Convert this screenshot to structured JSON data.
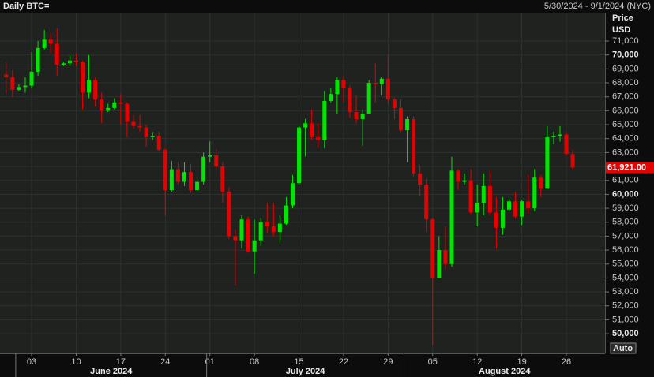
{
  "chart_data": {
    "type": "candlestick",
    "title": "Daily BTC=",
    "subtitle": "5/30/2024 - 9/1/2024 (NYC)",
    "y_axis_label": [
      "Price",
      "USD"
    ],
    "axis_button": "Auto",
    "up_color": "#00e600",
    "down_color": "#e60000",
    "grid": true,
    "xlim": [
      "2024-05-30",
      "2024-09-01"
    ],
    "ylim": [
      48590,
      73040
    ],
    "x": [
      "2024-05-30",
      "2024-05-31",
      "2024-06-01",
      "2024-06-02",
      "2024-06-03",
      "2024-06-04",
      "2024-06-05",
      "2024-06-06",
      "2024-06-07",
      "2024-06-08",
      "2024-06-09",
      "2024-06-10",
      "2024-06-11",
      "2024-06-12",
      "2024-06-13",
      "2024-06-14",
      "2024-06-15",
      "2024-06-16",
      "2024-06-17",
      "2024-06-18",
      "2024-06-19",
      "2024-06-20",
      "2024-06-21",
      "2024-06-22",
      "2024-06-23",
      "2024-06-24",
      "2024-06-25",
      "2024-06-26",
      "2024-06-27",
      "2024-06-28",
      "2024-06-29",
      "2024-06-30",
      "2024-07-01",
      "2024-07-02",
      "2024-07-03",
      "2024-07-04",
      "2024-07-05",
      "2024-07-06",
      "2024-07-07",
      "2024-07-08",
      "2024-07-09",
      "2024-07-10",
      "2024-07-11",
      "2024-07-12",
      "2024-07-13",
      "2024-07-14",
      "2024-07-15",
      "2024-07-16",
      "2024-07-17",
      "2024-07-18",
      "2024-07-19",
      "2024-07-20",
      "2024-07-21",
      "2024-07-22",
      "2024-07-23",
      "2024-07-24",
      "2024-07-25",
      "2024-07-26",
      "2024-07-27",
      "2024-07-28",
      "2024-07-29",
      "2024-07-30",
      "2024-07-31",
      "2024-08-01",
      "2024-08-02",
      "2024-08-03",
      "2024-08-04",
      "2024-08-05",
      "2024-08-06",
      "2024-08-07",
      "2024-08-08",
      "2024-08-09",
      "2024-08-10",
      "2024-08-11",
      "2024-08-12",
      "2024-08-13",
      "2024-08-14",
      "2024-08-15",
      "2024-08-16",
      "2024-08-17",
      "2024-08-18",
      "2024-08-19",
      "2024-08-20",
      "2024-08-21",
      "2024-08-22",
      "2024-08-23",
      "2024-08-24",
      "2024-08-25",
      "2024-08-26",
      "2024-08-27"
    ],
    "open": [
      68600,
      68400,
      67500,
      67700,
      67800,
      68800,
      70500,
      71100,
      70800,
      69300,
      69400,
      69600,
      69500,
      67300,
      68200,
      66800,
      66000,
      66200,
      66600,
      66500,
      65200,
      64900,
      64800,
      64100,
      64200,
      63200,
      60300,
      61800,
      60900,
      61600,
      60300,
      60900,
      62700,
      62800,
      62000,
      60200,
      57000,
      56700,
      58200,
      55900,
      56700,
      58000,
      57700,
      57300,
      57900,
      59200,
      60800,
      64800,
      65100,
      64100,
      63900,
      66700,
      67200,
      68200,
      67600,
      65900,
      65400,
      65800,
      68000,
      67900,
      68300,
      66800,
      66200,
      64600,
      65400,
      61500,
      60700,
      58200,
      54000,
      56000,
      55000,
      61700,
      60900,
      61000,
      58700,
      59400,
      60600,
      58700,
      57600,
      58900,
      59500,
      58400,
      59500,
      59000,
      61200,
      60400,
      64100,
      64200,
      64300,
      62900
    ],
    "high": [
      69500,
      68900,
      67900,
      68400,
      70200,
      71000,
      71800,
      71600,
      71900,
      69500,
      70000,
      70100,
      69600,
      70000,
      68400,
      67300,
      66500,
      66900,
      67200,
      66600,
      65700,
      65700,
      65000,
      64500,
      64500,
      63300,
      62400,
      62300,
      62300,
      62200,
      61200,
      63000,
      63800,
      63200,
      62300,
      60500,
      57500,
      58500,
      58400,
      58200,
      58300,
      59400,
      59400,
      58500,
      59800,
      61400,
      64900,
      65400,
      66100,
      65100,
      67400,
      67600,
      68400,
      68500,
      67800,
      67100,
      66100,
      68200,
      69400,
      68400,
      70000,
      66900,
      66800,
      65600,
      65600,
      62100,
      61100,
      58300,
      57000,
      57700,
      62700,
      61800,
      61500,
      61800,
      60700,
      61500,
      61700,
      59800,
      59800,
      59700,
      60200,
      59600,
      61400,
      61800,
      61400,
      64900,
      64500,
      64900,
      64500,
      63200
    ],
    "low": [
      67200,
      67000,
      67400,
      67300,
      67600,
      68500,
      70400,
      70100,
      68500,
      69200,
      69200,
      69200,
      66100,
      66900,
      66300,
      65100,
      65900,
      66100,
      65000,
      64100,
      64700,
      64500,
      63400,
      63900,
      63100,
      58500,
      60200,
      60700,
      60600,
      60100,
      60300,
      60700,
      62300,
      61800,
      59400,
      56800,
      53500,
      56100,
      55800,
      54300,
      56300,
      57200,
      57000,
      56600,
      57800,
      59000,
      60700,
      62700,
      63900,
      63300,
      63300,
      66600,
      65800,
      66600,
      65500,
      65100,
      63500,
      65800,
      66600,
      67100,
      66500,
      65400,
      64500,
      62300,
      61300,
      59900,
      57300,
      49200,
      54000,
      54600,
      54800,
      60300,
      60700,
      58600,
      57700,
      58500,
      58500,
      56100,
      57100,
      58800,
      58300,
      57800,
      58600,
      58800,
      59800,
      60400,
      63600,
      63800,
      62800,
      61800
    ],
    "close": [
      68400,
      67500,
      67700,
      67800,
      68800,
      70500,
      71100,
      70800,
      69300,
      69400,
      69600,
      69500,
      67300,
      68200,
      66800,
      66000,
      66200,
      66600,
      66500,
      65200,
      64900,
      64800,
      64100,
      64200,
      63200,
      60300,
      61800,
      60900,
      61600,
      60300,
      60900,
      62700,
      62800,
      62000,
      60200,
      57000,
      56700,
      58200,
      55900,
      56700,
      58000,
      57700,
      57300,
      57900,
      59200,
      60800,
      64800,
      65100,
      64100,
      63900,
      66700,
      67200,
      68200,
      67600,
      65900,
      65400,
      65800,
      68000,
      67900,
      68300,
      66800,
      66200,
      64600,
      65400,
      61500,
      60700,
      58200,
      54000,
      56000,
      55000,
      61700,
      60900,
      61000,
      58700,
      59400,
      60600,
      58700,
      57600,
      58900,
      59500,
      58400,
      59500,
      59000,
      61200,
      60400,
      64100,
      64200,
      64300,
      62900,
      61921
    ],
    "last_price": {
      "value": 61921,
      "label": "61,921.00"
    },
    "yticks": [
      {
        "value": 50000,
        "label": "50,000"
      },
      {
        "value": 51000,
        "label": "51,000"
      },
      {
        "value": 52000,
        "label": "52,000"
      },
      {
        "value": 53000,
        "label": "53,000"
      },
      {
        "value": 54000,
        "label": "54,000"
      },
      {
        "value": 55000,
        "label": "55,000"
      },
      {
        "value": 56000,
        "label": "56,000"
      },
      {
        "value": 57000,
        "label": "57,000"
      },
      {
        "value": 58000,
        "label": "58,000"
      },
      {
        "value": 59000,
        "label": "59,000"
      },
      {
        "value": 60000,
        "label": "60,000"
      },
      {
        "value": 61000,
        "label": "61,000"
      },
      {
        "value": 62000,
        "label": "62,000"
      },
      {
        "value": 63000,
        "label": "63,000"
      },
      {
        "value": 64000,
        "label": "64,000"
      },
      {
        "value": 65000,
        "label": "65,000"
      },
      {
        "value": 66000,
        "label": "66,000"
      },
      {
        "value": 67000,
        "label": "67,000"
      },
      {
        "value": 68000,
        "label": "68,000"
      },
      {
        "value": 69000,
        "label": "69,000"
      },
      {
        "value": 70000,
        "label": "70,000"
      },
      {
        "value": 71000,
        "label": "71,000"
      }
    ],
    "xticks": [
      {
        "value": "2024-06-03",
        "label": "03"
      },
      {
        "value": "2024-06-10",
        "label": "10"
      },
      {
        "value": "2024-06-17",
        "label": "17"
      },
      {
        "value": "2024-06-24",
        "label": "24"
      },
      {
        "value": "2024-07-01",
        "label": "01"
      },
      {
        "value": "2024-07-08",
        "label": "08"
      },
      {
        "value": "2024-07-15",
        "label": "15"
      },
      {
        "value": "2024-07-22",
        "label": "22"
      },
      {
        "value": "2024-07-29",
        "label": "29"
      },
      {
        "value": "2024-08-05",
        "label": "05"
      },
      {
        "value": "2024-08-12",
        "label": "12"
      },
      {
        "value": "2024-08-19",
        "label": "19"
      },
      {
        "value": "2024-08-26",
        "label": "26"
      }
    ],
    "months": [
      {
        "value": "2024-06-01",
        "label": "June 2024"
      },
      {
        "value": "2024-07-01",
        "label": "July 2024"
      },
      {
        "value": "2024-08-01",
        "label": "August 2024"
      }
    ]
  }
}
